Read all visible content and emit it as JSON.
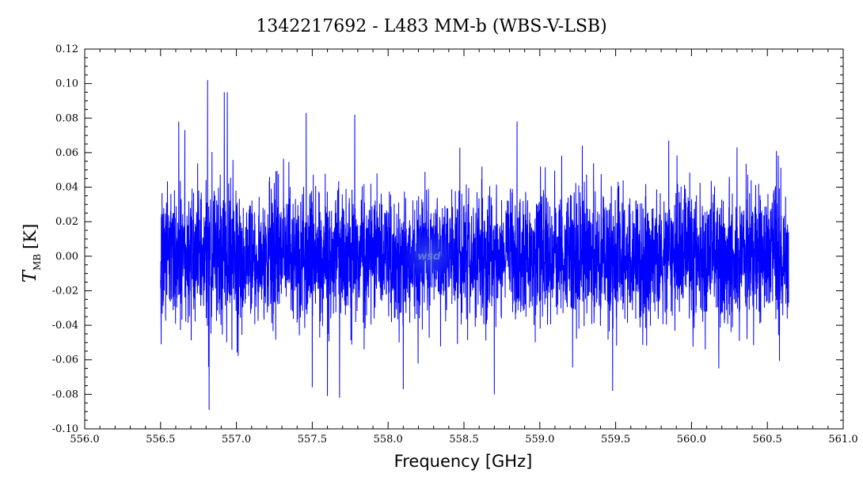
{
  "chart_data": {
    "type": "line",
    "title": "1342217692 - L483 MM-b (WBS-V-LSB)",
    "xlabel": "Frequency [GHz]",
    "ylabel": {
      "symbol": "T",
      "subscript": "MB",
      "unit": "[K]"
    },
    "xlim": [
      556.0,
      561.0
    ],
    "ylim": [
      -0.1,
      0.12
    ],
    "x_ticks": [
      "556.0",
      "556.5",
      "557.0",
      "557.5",
      "558.0",
      "558.5",
      "559.0",
      "559.5",
      "560.0",
      "560.5",
      "561.0"
    ],
    "y_ticks": [
      "-0.10",
      "-0.08",
      "-0.06",
      "-0.04",
      "-0.02",
      "0.00",
      "0.02",
      "0.04",
      "0.06",
      "0.08",
      "0.10",
      "0.12"
    ],
    "grid": false,
    "series": [
      {
        "color": "#0000ff",
        "x_range": [
          556.5,
          560.64
        ],
        "noise_std": 0.019,
        "peaks": [
          {
            "x": 556.81,
            "y": 0.102
          },
          {
            "x": 556.82,
            "y": -0.089
          },
          {
            "x": 556.92,
            "y": 0.095
          },
          {
            "x": 556.94,
            "y": 0.095
          },
          {
            "x": 556.62,
            "y": 0.078
          },
          {
            "x": 556.66,
            "y": 0.073
          },
          {
            "x": 557.46,
            "y": 0.083
          },
          {
            "x": 557.6,
            "y": -0.081
          },
          {
            "x": 557.68,
            "y": -0.082
          },
          {
            "x": 557.78,
            "y": 0.082
          },
          {
            "x": 557.5,
            "y": -0.076
          },
          {
            "x": 558.1,
            "y": -0.077
          },
          {
            "x": 558.7,
            "y": -0.08
          },
          {
            "x": 558.85,
            "y": 0.078
          },
          {
            "x": 559.48,
            "y": -0.078
          },
          {
            "x": 559.85,
            "y": 0.067
          },
          {
            "x": 560.18,
            "y": -0.065
          },
          {
            "x": 560.3,
            "y": 0.063
          },
          {
            "x": 560.56,
            "y": 0.061
          },
          {
            "x": 559.28,
            "y": 0.064
          }
        ]
      }
    ]
  },
  "watermark": {
    "text": "wsd"
  }
}
